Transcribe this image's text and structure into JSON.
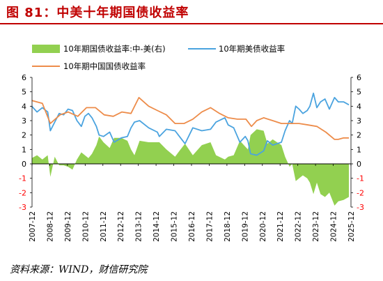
{
  "figure": {
    "title": "图 81：中美十年期国债收益率",
    "source": "资料来源：WIND，财信研究院"
  },
  "colors": {
    "title": "#c00000",
    "us10y": "#4aa3df",
    "cn10y": "#ed8c4a",
    "spread_fill": "#92d050",
    "neg_tick": "#ff0000",
    "tick": "#000000"
  },
  "chart_data": {
    "type": "line",
    "legend": {
      "items": [
        "10年期国债收益率:中-美(右)",
        "10年期美债收益率",
        "10年期中国国债收益率"
      ],
      "placement": "top"
    },
    "x_ticks": [
      "2007-12",
      "2008-12",
      "2009-12",
      "2010-12",
      "2011-12",
      "2012-12",
      "2013-12",
      "2014-12",
      "2015-12",
      "2016-12",
      "2017-12",
      "2018-12",
      "2019-12",
      "2020-12",
      "2021-12",
      "2022-12",
      "2023-12",
      "2024-12",
      "2025-12"
    ],
    "x_range": [
      2007.917,
      2025.917
    ],
    "y_left": {
      "range": [
        -3,
        6
      ],
      "ticks": [
        "6",
        "5",
        "4",
        "3",
        "2",
        "1",
        "0",
        "-1",
        "-2",
        "-3"
      ]
    },
    "y_right": {
      "range": [
        -3,
        6
      ],
      "ticks": [
        "6",
        "5",
        "4",
        "3",
        "2",
        "1",
        "0",
        "-1",
        "-2",
        "-3"
      ]
    },
    "series": [
      {
        "name": "10年期美债收益率",
        "axis": "left",
        "x": [
          2007.9,
          2008.2,
          2008.5,
          2008.8,
          2008.95,
          2009.2,
          2009.45,
          2009.7,
          2009.95,
          2010.2,
          2010.45,
          2010.7,
          2010.9,
          2011.1,
          2011.3,
          2011.55,
          2011.7,
          2011.95,
          2012.3,
          2012.55,
          2012.95,
          2013.3,
          2013.5,
          2013.7,
          2013.99,
          2014.5,
          2014.99,
          2015.1,
          2015.5,
          2015.99,
          2016.3,
          2016.55,
          2016.99,
          2017.5,
          2017.99,
          2018.3,
          2018.8,
          2018.99,
          2019.3,
          2019.65,
          2019.95,
          2020.1,
          2020.25,
          2020.6,
          2020.99,
          2021.2,
          2021.5,
          2021.99,
          2022.2,
          2022.45,
          2022.6,
          2022.8,
          2022.99,
          2023.2,
          2023.45,
          2023.6,
          2023.8,
          2023.99,
          2024.2,
          2024.45,
          2024.7,
          2024.99,
          2025.2,
          2025.5,
          2025.8
        ],
        "values": [
          4.0,
          3.6,
          3.9,
          3.6,
          2.3,
          2.9,
          3.5,
          3.4,
          3.8,
          3.7,
          3.0,
          2.6,
          3.3,
          3.5,
          3.2,
          2.6,
          2.0,
          1.9,
          2.2,
          1.5,
          1.8,
          1.9,
          2.5,
          2.9,
          3.0,
          2.5,
          2.2,
          1.9,
          2.4,
          2.3,
          1.8,
          1.4,
          2.5,
          2.3,
          2.4,
          2.9,
          3.2,
          2.7,
          2.5,
          1.5,
          1.9,
          1.6,
          0.7,
          0.6,
          0.9,
          1.6,
          1.3,
          1.5,
          2.3,
          3.0,
          2.8,
          4.0,
          3.8,
          3.5,
          3.7,
          4.0,
          4.9,
          3.9,
          4.3,
          4.5,
          3.8,
          4.6,
          4.3,
          4.3,
          4.1
        ]
      },
      {
        "name": "10年期中国国债收益率",
        "axis": "left",
        "x": [
          2007.9,
          2008.5,
          2008.95,
          2009.5,
          2009.95,
          2010.5,
          2010.99,
          2011.5,
          2011.99,
          2012.5,
          2012.99,
          2013.5,
          2013.95,
          2014.5,
          2014.99,
          2015.5,
          2015.99,
          2016.5,
          2016.99,
          2017.5,
          2017.99,
          2018.5,
          2018.99,
          2019.5,
          2019.99,
          2020.3,
          2020.6,
          2020.99,
          2021.5,
          2021.99,
          2022.5,
          2022.99,
          2023.5,
          2023.99,
          2024.5,
          2024.99,
          2025.2,
          2025.5,
          2025.8
        ],
        "values": [
          4.4,
          4.2,
          2.8,
          3.4,
          3.6,
          3.3,
          3.9,
          3.9,
          3.4,
          3.3,
          3.6,
          3.5,
          4.6,
          4.0,
          3.7,
          3.4,
          2.8,
          2.8,
          3.1,
          3.6,
          3.9,
          3.5,
          3.2,
          3.1,
          3.1,
          2.6,
          3.0,
          3.2,
          3.0,
          2.8,
          2.8,
          2.8,
          2.7,
          2.6,
          2.2,
          1.7,
          1.7,
          1.8,
          1.8
        ]
      },
      {
        "name": "10年期国债收益率:中-美(右)",
        "axis": "right",
        "type": "area",
        "x": [
          2007.9,
          2008.2,
          2008.5,
          2008.8,
          2008.95,
          2009.2,
          2009.45,
          2009.7,
          2009.95,
          2010.2,
          2010.45,
          2010.7,
          2010.9,
          2011.1,
          2011.3,
          2011.55,
          2011.7,
          2011.95,
          2012.3,
          2012.55,
          2012.95,
          2013.3,
          2013.5,
          2013.7,
          2013.99,
          2014.5,
          2014.99,
          2015.1,
          2015.5,
          2015.99,
          2016.3,
          2016.55,
          2016.99,
          2017.5,
          2017.99,
          2018.3,
          2018.8,
          2018.99,
          2019.3,
          2019.65,
          2019.95,
          2020.1,
          2020.25,
          2020.6,
          2020.99,
          2021.2,
          2021.5,
          2021.99,
          2022.2,
          2022.45,
          2022.6,
          2022.8,
          2022.99,
          2023.2,
          2023.45,
          2023.6,
          2023.8,
          2023.99,
          2024.2,
          2024.45,
          2024.7,
          2024.99,
          2025.2,
          2025.5,
          2025.8
        ],
        "values": [
          0.4,
          0.6,
          0.3,
          0.6,
          -0.9,
          0.5,
          -0.1,
          -0.1,
          -0.2,
          -0.4,
          0.3,
          0.8,
          0.6,
          0.4,
          0.7,
          1.3,
          1.9,
          1.5,
          1.1,
          1.8,
          1.8,
          1.6,
          1.0,
          0.6,
          1.6,
          1.5,
          1.5,
          1.5,
          1.0,
          0.5,
          1.0,
          1.4,
          0.6,
          1.3,
          1.5,
          0.6,
          0.3,
          0.5,
          0.6,
          1.6,
          1.2,
          1.0,
          2.0,
          2.4,
          2.3,
          1.4,
          1.7,
          1.3,
          0.5,
          -0.2,
          0.0,
          -1.2,
          -1.0,
          -0.8,
          -1.0,
          -1.3,
          -2.1,
          -1.3,
          -2.1,
          -2.3,
          -2.0,
          -2.9,
          -2.6,
          -2.5,
          -2.3
        ]
      }
    ],
    "xlabel": "",
    "ylabel": ""
  }
}
